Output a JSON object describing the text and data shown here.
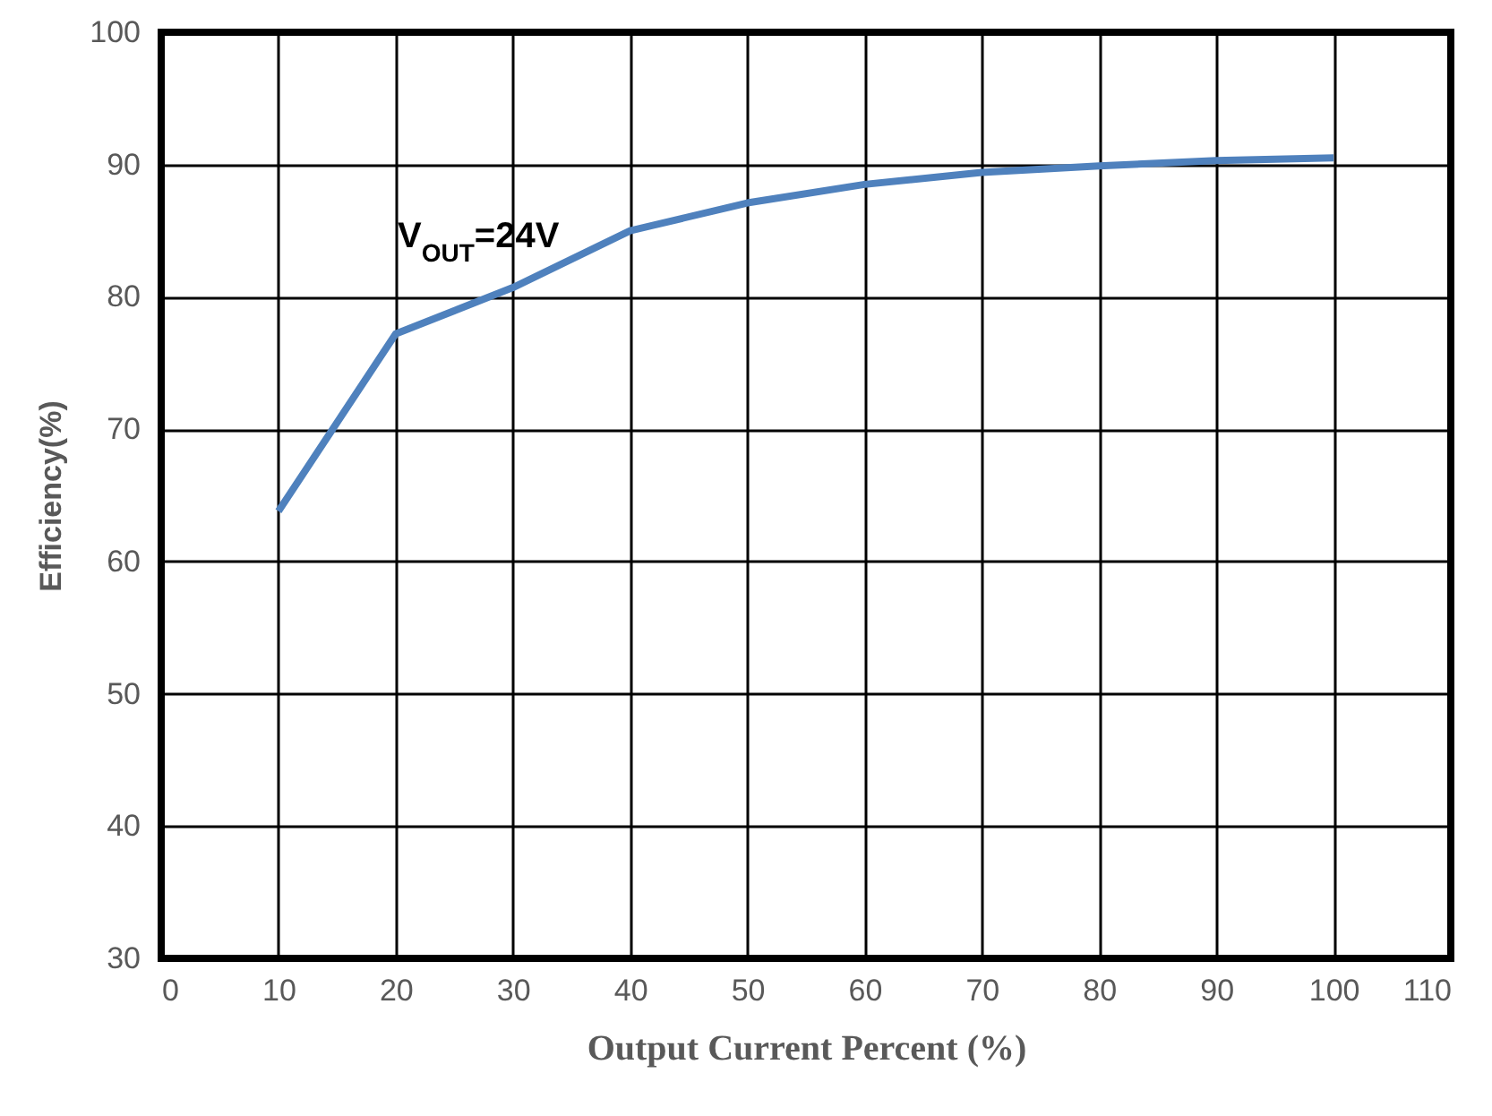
{
  "chart_data": {
    "type": "line",
    "xlabel": "Output Current Percent (%)",
    "ylabel": "Efficiency(%)",
    "x": [
      10,
      20,
      30,
      40,
      50,
      60,
      70,
      80,
      90,
      100
    ],
    "series": [
      {
        "color": "#4f81bd",
        "values": [
          63.8,
          77.2,
          80.7,
          85,
          87.1,
          88.5,
          89.4,
          89.9,
          90.3,
          90.5
        ]
      }
    ],
    "xlim": [
      0,
      110
    ],
    "xticks": [
      0,
      10,
      20,
      30,
      40,
      50,
      60,
      70,
      80,
      90,
      100,
      110
    ],
    "ylim": [
      30,
      100
    ],
    "yticks": [
      30,
      40,
      50,
      60,
      70,
      80,
      90,
      100
    ],
    "grid": true,
    "marker": "none",
    "line_style": "solid",
    "annotations": [
      "V$_{OUT}$=24V"
    ]
  }
}
